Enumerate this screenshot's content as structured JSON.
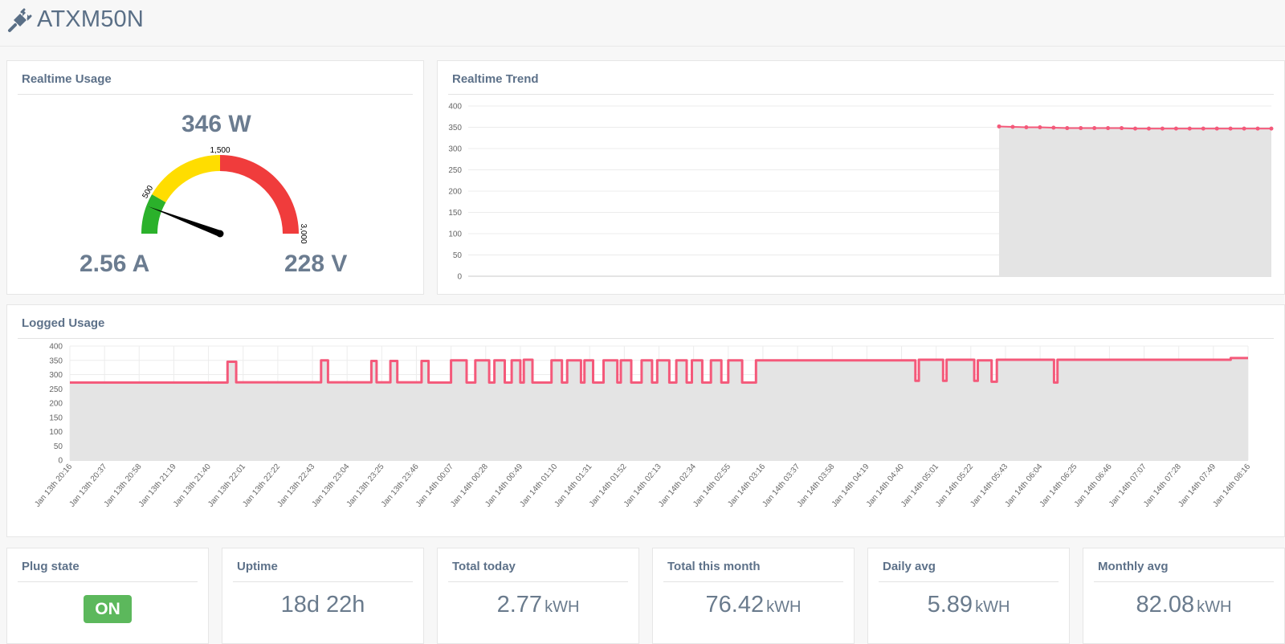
{
  "header": {
    "title": "ATXM50N",
    "icon": "plug-icon"
  },
  "realtime_usage": {
    "title": "Realtime Usage",
    "power": "346 W",
    "current": "2.56 A",
    "voltage": "228 V",
    "gauge": {
      "min": 0,
      "max": 3000,
      "value": 346,
      "ticks": [
        "500",
        "1,500",
        "3,000"
      ],
      "bands": [
        {
          "from": 0,
          "to": 500,
          "color": "#2bb12b"
        },
        {
          "from": 500,
          "to": 1500,
          "color": "#ffdd00"
        },
        {
          "from": 1500,
          "to": 3000,
          "color": "#f03c3c"
        }
      ]
    }
  },
  "realtime_trend": {
    "title": "Realtime Trend",
    "chart_data": {
      "type": "area",
      "ylim": [
        0,
        400
      ],
      "yticks": [
        "400",
        "350",
        "300",
        "250",
        "200",
        "150",
        "100",
        "50",
        "0"
      ],
      "points": 60,
      "start_index": 39,
      "values": [
        352,
        351,
        350,
        350,
        349,
        348,
        348,
        348,
        348,
        348,
        347,
        347,
        347,
        347,
        347,
        347,
        347,
        347,
        347,
        347,
        347
      ],
      "color": "#f4597a",
      "fill": "#e4e4e4"
    }
  },
  "logged_usage": {
    "title": "Logged Usage",
    "chart_data": {
      "type": "area",
      "ylim": [
        0,
        400
      ],
      "yticks": [
        "400",
        "350",
        "300",
        "250",
        "200",
        "150",
        "100",
        "50",
        "0"
      ],
      "x": [
        "Jan 13th 20:16",
        "Jan 13th 20:37",
        "Jan 13th 20:58",
        "Jan 13th 21:19",
        "Jan 13th 21:40",
        "Jan 13th 22:01",
        "Jan 13th 22:22",
        "Jan 13th 22:43",
        "Jan 13th 23:04",
        "Jan 13th 23:25",
        "Jan 13th 23:46",
        "Jan 14th 00:07",
        "Jan 14th 00:28",
        "Jan 14th 00:49",
        "Jan 14th 01:10",
        "Jan 14th 01:31",
        "Jan 14th 01:52",
        "Jan 14th 02:13",
        "Jan 14th 02:34",
        "Jan 14th 02:55",
        "Jan 14th 03:16",
        "Jan 14th 03:37",
        "Jan 14th 03:58",
        "Jan 14th 04:19",
        "Jan 14th 04:40",
        "Jan 14th 05:01",
        "Jan 14th 05:22",
        "Jan 14th 05:43",
        "Jan 14th 06:04",
        "Jan 14th 06:25",
        "Jan 14th 06:46",
        "Jan 14th 07:07",
        "Jan 14th 07:28",
        "Jan 14th 07:49",
        "Jan 14th 08:16"
      ],
      "segments": [
        [
          0,
          4.55,
          272
        ],
        [
          4.55,
          4.8,
          345
        ],
        [
          4.8,
          7.25,
          273
        ],
        [
          7.25,
          7.45,
          350
        ],
        [
          7.45,
          8.7,
          273
        ],
        [
          8.7,
          8.85,
          348
        ],
        [
          8.85,
          9.25,
          273
        ],
        [
          9.25,
          9.45,
          348
        ],
        [
          9.45,
          10.15,
          273
        ],
        [
          10.15,
          10.35,
          348
        ],
        [
          10.35,
          11.0,
          272
        ],
        [
          11.0,
          11.45,
          350
        ],
        [
          11.45,
          11.7,
          272
        ],
        [
          11.7,
          12.1,
          350
        ],
        [
          12.1,
          12.25,
          272
        ],
        [
          12.25,
          12.55,
          350
        ],
        [
          12.55,
          12.75,
          272
        ],
        [
          12.75,
          13.0,
          350
        ],
        [
          13.0,
          13.1,
          272
        ],
        [
          13.1,
          13.35,
          352
        ],
        [
          13.35,
          13.9,
          272
        ],
        [
          13.9,
          14.2,
          350
        ],
        [
          14.2,
          14.35,
          272
        ],
        [
          14.35,
          14.75,
          350
        ],
        [
          14.75,
          14.85,
          272
        ],
        [
          14.85,
          15.1,
          350
        ],
        [
          15.1,
          15.4,
          272
        ],
        [
          15.4,
          15.8,
          350
        ],
        [
          15.8,
          15.9,
          272
        ],
        [
          15.9,
          16.2,
          350
        ],
        [
          16.2,
          16.5,
          272
        ],
        [
          16.5,
          16.8,
          350
        ],
        [
          16.8,
          16.95,
          272
        ],
        [
          16.95,
          17.3,
          350
        ],
        [
          17.3,
          17.5,
          272
        ],
        [
          17.5,
          17.8,
          350
        ],
        [
          17.8,
          17.95,
          272
        ],
        [
          17.95,
          18.25,
          350
        ],
        [
          18.25,
          18.5,
          272
        ],
        [
          18.5,
          18.8,
          350
        ],
        [
          18.8,
          19.0,
          272
        ],
        [
          19.0,
          19.4,
          350
        ],
        [
          19.4,
          19.8,
          272
        ],
        [
          19.8,
          24.4,
          350
        ],
        [
          24.4,
          24.5,
          278
        ],
        [
          24.5,
          25.2,
          352
        ],
        [
          25.2,
          25.3,
          278
        ],
        [
          25.3,
          26.1,
          352
        ],
        [
          26.1,
          26.2,
          278
        ],
        [
          26.2,
          26.6,
          350
        ],
        [
          26.6,
          26.75,
          275
        ],
        [
          26.75,
          28.4,
          352
        ],
        [
          28.4,
          28.5,
          272
        ],
        [
          28.5,
          33.5,
          352
        ],
        [
          33.5,
          34.0,
          358
        ]
      ],
      "color": "#f4597a",
      "fill": "#e4e4e4"
    }
  },
  "stats": [
    {
      "title": "Plug state",
      "badge": "ON"
    },
    {
      "title": "Uptime",
      "value": "18d 22h",
      "unit": ""
    },
    {
      "title": "Total today",
      "value": "2.77",
      "unit": "kWH"
    },
    {
      "title": "Total this month",
      "value": "76.42",
      "unit": "kWH"
    },
    {
      "title": "Daily avg",
      "value": "5.89",
      "unit": "kWH"
    },
    {
      "title": "Monthly avg",
      "value": "82.08",
      "unit": "kWH"
    }
  ]
}
